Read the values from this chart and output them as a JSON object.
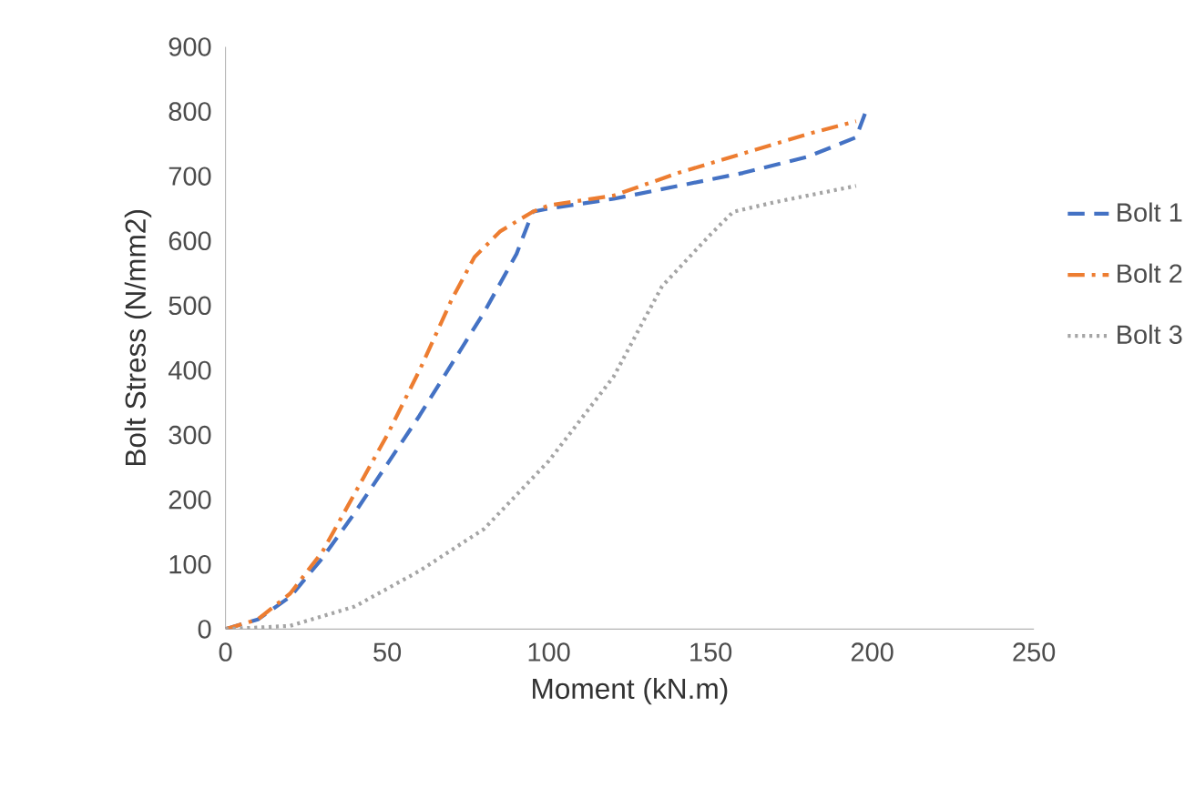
{
  "chart_data": {
    "type": "line",
    "xlabel": "Moment (kN.m)",
    "ylabel": "Bolt Stress (N/mm2)",
    "xlim": [
      0,
      250
    ],
    "xticks": [
      0,
      50,
      100,
      150,
      200,
      250
    ],
    "ylim": [
      0,
      900
    ],
    "yticks": [
      0,
      100,
      200,
      300,
      400,
      500,
      600,
      700,
      800,
      900
    ],
    "grid": false,
    "legend": "right",
    "marker": "none",
    "series": [
      {
        "name": "Bolt 1",
        "color": "#4472c4",
        "line_style": "dashed",
        "x": [
          0,
          10,
          20,
          30,
          40,
          50,
          60,
          70,
          80,
          90,
          95,
          100,
          120,
          140,
          160,
          180,
          195,
          198
        ],
        "values": [
          0,
          15,
          50,
          110,
          180,
          255,
          330,
          410,
          490,
          580,
          645,
          650,
          665,
          685,
          705,
          730,
          760,
          800
        ]
      },
      {
        "name": "Bolt 2",
        "color": "#ed7d31",
        "line_style": "dashdot",
        "x": [
          0,
          10,
          20,
          30,
          40,
          50,
          60,
          70,
          77,
          85,
          95,
          100,
          120,
          140,
          160,
          180,
          195
        ],
        "values": [
          0,
          15,
          55,
          120,
          210,
          300,
          400,
          510,
          575,
          615,
          645,
          655,
          670,
          705,
          735,
          765,
          785
        ]
      },
      {
        "name": "Bolt 3",
        "color": "#a5a5a5",
        "line_style": "dotted",
        "x": [
          0,
          20,
          40,
          60,
          80,
          100,
          120,
          135,
          150,
          157,
          170,
          185,
          195
        ],
        "values": [
          0,
          5,
          35,
          90,
          155,
          260,
          390,
          530,
          610,
          645,
          660,
          675,
          685
        ]
      }
    ]
  }
}
